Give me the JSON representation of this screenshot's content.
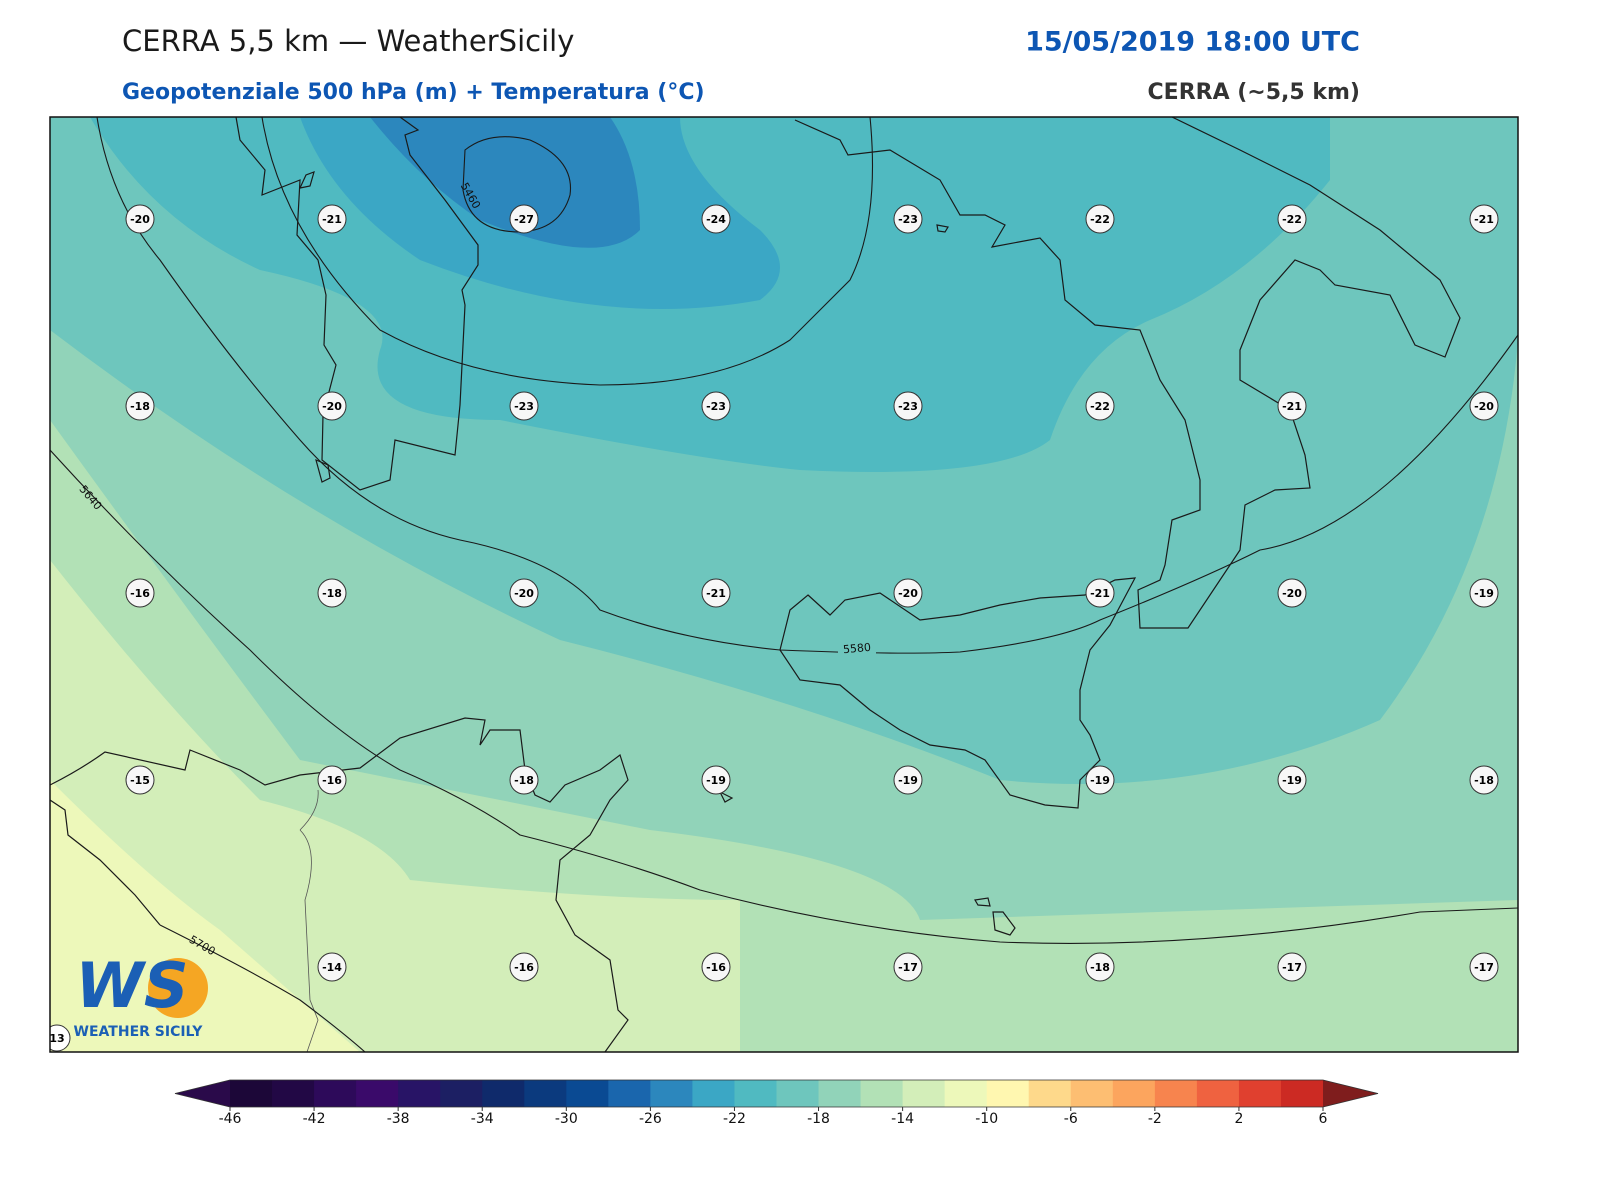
{
  "header": {
    "title": "CERRA 5,5 km — WeatherSicily",
    "subtitle": "Geopotenziale 500 hPa (m) + Temperatura (°C)",
    "datetime": "15/05/2019 18:00 UTC",
    "model": "CERRA (~5,5 km)"
  },
  "map": {
    "temperature_rows": [
      [
        -20,
        -21,
        -27,
        -24,
        -23,
        -22,
        -22,
        -21
      ],
      [
        -18,
        -20,
        -23,
        -23,
        -23,
        -22,
        -21,
        -20
      ],
      [
        -16,
        -18,
        -20,
        -21,
        -20,
        -21,
        -20,
        -19
      ],
      [
        -15,
        -16,
        -18,
        -19,
        -19,
        -19,
        -19,
        -18
      ],
      [
        null,
        -14,
        -16,
        -16,
        -17,
        -18,
        -17,
        -17
      ]
    ],
    "corner_label": 13,
    "contour_labels": [
      "5460",
      "5640",
      "5580",
      "5700"
    ]
  },
  "logo": {
    "mark": "WS",
    "text": "WEATHER SICILY"
  },
  "colorbar": {
    "lim": [
      -46,
      6
    ],
    "ticks": [
      -46,
      -42,
      -38,
      -34,
      -30,
      -26,
      -22,
      -18,
      -14,
      -10,
      -6,
      -2,
      2,
      6
    ],
    "colors": [
      "#1c0738",
      "#220845",
      "#2d0a5a",
      "#3a0a6a",
      "#281466",
      "#1c1f63",
      "#0f2a6b",
      "#0b3a7e",
      "#0a4a93",
      "#1a66ad",
      "#2c87bd",
      "#3ba7c5",
      "#50bac1",
      "#6ec6bd",
      "#91d3b9",
      "#b2e1b6",
      "#d3eeb9",
      "#edf8ba",
      "#fff7b0",
      "#fed98b",
      "#fdbe72",
      "#fca55e",
      "#f7844e",
      "#ef6240",
      "#e0402f",
      "#cc2a23"
    ],
    "under_color": "#2a0a4a",
    "over_color": "#7f1d1d"
  }
}
